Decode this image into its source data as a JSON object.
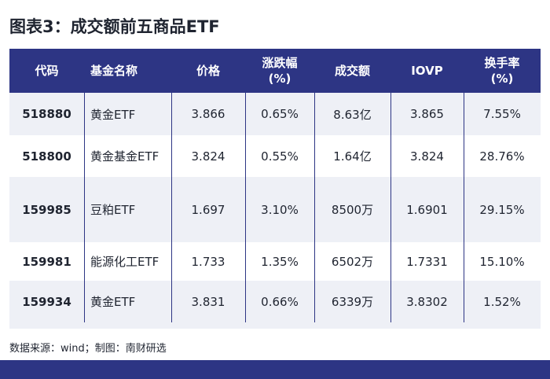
{
  "title": "图表3：成交额前五商品ETF",
  "table": {
    "header": [
      [
        "代码"
      ],
      [
        "基金名称"
      ],
      [
        "价格"
      ],
      [
        "涨跌幅",
        "(%)"
      ],
      [
        "成交额"
      ],
      [
        "IOVP"
      ],
      [
        "换手率",
        "(%)"
      ]
    ],
    "rows": [
      [
        "518880",
        "黄金ETF",
        "3.866",
        "0.65%",
        "8.63亿",
        "3.865",
        "7.55%"
      ],
      [
        "518800",
        "黄金基金ETF",
        "3.824",
        "0.55%",
        "1.64亿",
        "3.824",
        "28.76%"
      ],
      [
        "159985",
        "豆粕ETF",
        "1.697",
        "3.10%",
        "8500万",
        "1.6901",
        "29.15%"
      ],
      [
        "159981",
        "能源化工ETF",
        "1.733",
        "1.35%",
        "6502万",
        "1.7331",
        "15.10%"
      ],
      [
        "159934",
        "黄金ETF",
        "3.831",
        "0.66%",
        "6339万",
        "3.8302",
        "1.52%"
      ]
    ]
  },
  "source": "数据来源：wind；制图：南财研选"
}
